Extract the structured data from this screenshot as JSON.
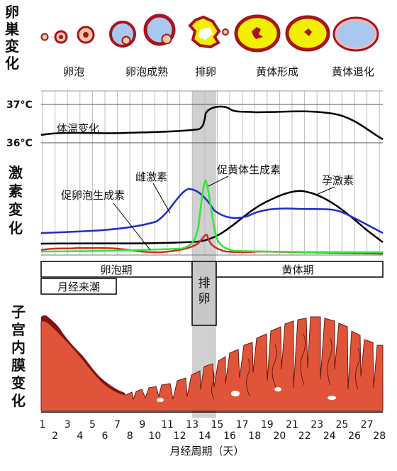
{
  "section_labels": {
    "ovary": [
      "卵",
      "巣",
      "変",
      "化"
    ],
    "hormone": [
      "激",
      "素",
      "変",
      "化"
    ],
    "endometrium": [
      "子",
      "宫",
      "内",
      "膜",
      "变",
      "化"
    ]
  },
  "ovary_stages": [
    "卵泡",
    "卵泡成熟",
    "排卵",
    "黄体形成",
    "黄体退化"
  ],
  "temperature": {
    "high": "37°C",
    "low": "36°C",
    "label": "体温变化"
  },
  "hormones": {
    "estrogen": "雌激素",
    "fsh": "促卵泡生成素",
    "lh": "促黄体生成素",
    "progesterone": "孕激素"
  },
  "phases": {
    "follicular": "卵泡期",
    "menstruation": "月经来潮",
    "ovulation": [
      "排",
      "卵"
    ],
    "luteal": "黄体期"
  },
  "xaxis": {
    "label": "月经周期（天）",
    "odd_days": [
      "1",
      "3",
      "5",
      "7",
      "9",
      "11",
      "13",
      "15",
      "17",
      "19",
      "21",
      "23",
      "25",
      "27"
    ],
    "even_days": [
      "2",
      "4",
      "6",
      "8",
      "10",
      "12",
      "14",
      "16",
      "18",
      "20",
      "22",
      "24",
      "26",
      "28"
    ]
  },
  "colors": {
    "estrogen": "#1f2fc4",
    "fsh": "#d42a1e",
    "lh": "#2fe83a",
    "progesterone": "#000000",
    "ovulation_band": "#c8c8c8",
    "endometrium": "#e0553a",
    "corpus_luteum": "#f2ef00",
    "follicle_fluid": "#a9c8f0",
    "ovary_rim": "#a8141c"
  }
}
